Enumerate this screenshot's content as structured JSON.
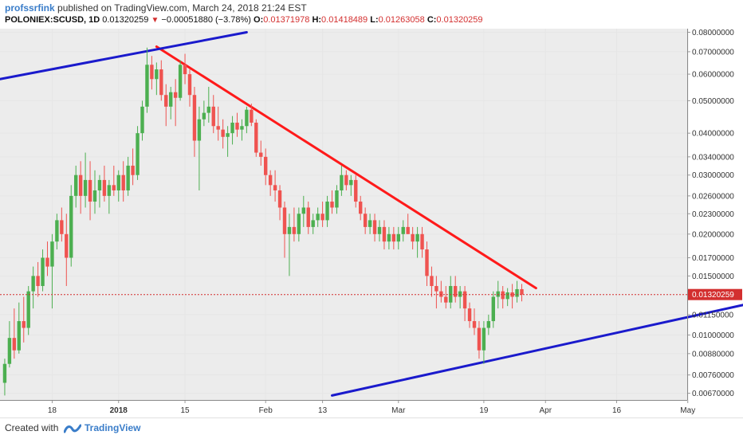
{
  "header": {
    "author": "profssrfink",
    "published": " published on TradingView.com, March 24, 2018 21:24 EST",
    "symbol": "POLONIEX:SCUSD, 1D",
    "last": "0.01320259",
    "change": "−0.00051880 (−3.78%)",
    "o_label": "O:",
    "o_value": "0.01371978",
    "h_label": "H:",
    "h_value": "0.01418489",
    "l_label": "L:",
    "l_value": "0.01263058",
    "c_label": "C:",
    "c_value": "0.01320259"
  },
  "footer": {
    "created": "Created with",
    "brand": "TradingView"
  },
  "colors": {
    "up": "#4caf50",
    "down": "#ef5350",
    "resistance": "#ff1a1a",
    "support": "#1a1acc",
    "grid": "#e6e6e6",
    "plot_bg": "#ececec",
    "price_tag": "#d32f2f",
    "axis_text": "#333333"
  },
  "chart_data": {
    "type": "candlestick",
    "scale": "log",
    "ylim": [
      0.0064,
      0.082
    ],
    "y_ticks": [
      "0.08000000",
      "0.07000000",
      "0.06000000",
      "0.05000000",
      "0.04000000",
      "0.03400000",
      "0.03000000",
      "0.02600000",
      "0.02300000",
      "0.02000000",
      "0.01700000",
      "0.01500000",
      "0.01150000",
      "0.01000000",
      "0.00880000",
      "0.00760000",
      "0.00670000"
    ],
    "x_ticks": [
      {
        "label": "18",
        "date": "2017-12-18",
        "bold": false
      },
      {
        "label": "2018",
        "date": "2018-01-01",
        "bold": true
      },
      {
        "label": "15",
        "date": "2018-01-15",
        "bold": false
      },
      {
        "label": "Feb",
        "date": "2018-02-01",
        "bold": false
      },
      {
        "label": "13",
        "date": "2018-02-13",
        "bold": false
      },
      {
        "label": "Mar",
        "date": "2018-03-01",
        "bold": false
      },
      {
        "label": "19",
        "date": "2018-03-19",
        "bold": false
      },
      {
        "label": "Apr",
        "date": "2018-04-01",
        "bold": false
      },
      {
        "label": "16",
        "date": "2018-04-16",
        "bold": false
      },
      {
        "label": "May",
        "date": "2018-05-01",
        "bold": false
      }
    ],
    "current_price": "0.01320259",
    "candles": [
      {
        "date": "2017-12-08",
        "o": 0.0072,
        "h": 0.0085,
        "l": 0.0066,
        "c": 0.0082
      },
      {
        "date": "2017-12-09",
        "o": 0.0082,
        "h": 0.011,
        "l": 0.008,
        "c": 0.0098
      },
      {
        "date": "2017-12-10",
        "o": 0.0098,
        "h": 0.012,
        "l": 0.0085,
        "c": 0.009
      },
      {
        "date": "2017-12-11",
        "o": 0.009,
        "h": 0.0125,
        "l": 0.0088,
        "c": 0.011
      },
      {
        "date": "2017-12-12",
        "o": 0.011,
        "h": 0.013,
        "l": 0.0095,
        "c": 0.0105
      },
      {
        "date": "2017-12-13",
        "o": 0.0105,
        "h": 0.014,
        "l": 0.01,
        "c": 0.0135
      },
      {
        "date": "2017-12-14",
        "o": 0.0135,
        "h": 0.016,
        "l": 0.012,
        "c": 0.015
      },
      {
        "date": "2017-12-15",
        "o": 0.015,
        "h": 0.0165,
        "l": 0.013,
        "c": 0.014
      },
      {
        "date": "2017-12-16",
        "o": 0.014,
        "h": 0.018,
        "l": 0.0135,
        "c": 0.017
      },
      {
        "date": "2017-12-17",
        "o": 0.017,
        "h": 0.019,
        "l": 0.015,
        "c": 0.016
      },
      {
        "date": "2017-12-18",
        "o": 0.016,
        "h": 0.02,
        "l": 0.012,
        "c": 0.019
      },
      {
        "date": "2017-12-19",
        "o": 0.019,
        "h": 0.023,
        "l": 0.018,
        "c": 0.022
      },
      {
        "date": "2017-12-20",
        "o": 0.022,
        "h": 0.024,
        "l": 0.019,
        "c": 0.02
      },
      {
        "date": "2017-12-21",
        "o": 0.02,
        "h": 0.023,
        "l": 0.014,
        "c": 0.017
      },
      {
        "date": "2017-12-22",
        "o": 0.017,
        "h": 0.028,
        "l": 0.016,
        "c": 0.026
      },
      {
        "date": "2017-12-23",
        "o": 0.026,
        "h": 0.032,
        "l": 0.024,
        "c": 0.03
      },
      {
        "date": "2017-12-24",
        "o": 0.03,
        "h": 0.033,
        "l": 0.023,
        "c": 0.026
      },
      {
        "date": "2017-12-25",
        "o": 0.026,
        "h": 0.035,
        "l": 0.024,
        "c": 0.029
      },
      {
        "date": "2017-12-26",
        "o": 0.029,
        "h": 0.033,
        "l": 0.022,
        "c": 0.025
      },
      {
        "date": "2017-12-27",
        "o": 0.025,
        "h": 0.031,
        "l": 0.023,
        "c": 0.027
      },
      {
        "date": "2017-12-28",
        "o": 0.027,
        "h": 0.03,
        "l": 0.024,
        "c": 0.029
      },
      {
        "date": "2017-12-29",
        "o": 0.029,
        "h": 0.032,
        "l": 0.025,
        "c": 0.026
      },
      {
        "date": "2017-12-30",
        "o": 0.026,
        "h": 0.029,
        "l": 0.023,
        "c": 0.028
      },
      {
        "date": "2017-12-31",
        "o": 0.028,
        "h": 0.032,
        "l": 0.026,
        "c": 0.027
      },
      {
        "date": "2018-01-01",
        "o": 0.027,
        "h": 0.031,
        "l": 0.025,
        "c": 0.03
      },
      {
        "date": "2018-01-02",
        "o": 0.03,
        "h": 0.033,
        "l": 0.025,
        "c": 0.027
      },
      {
        "date": "2018-01-03",
        "o": 0.027,
        "h": 0.034,
        "l": 0.026,
        "c": 0.032
      },
      {
        "date": "2018-01-04",
        "o": 0.032,
        "h": 0.036,
        "l": 0.028,
        "c": 0.03
      },
      {
        "date": "2018-01-05",
        "o": 0.03,
        "h": 0.042,
        "l": 0.029,
        "c": 0.04
      },
      {
        "date": "2018-01-06",
        "o": 0.04,
        "h": 0.05,
        "l": 0.038,
        "c": 0.048
      },
      {
        "date": "2018-01-07",
        "o": 0.048,
        "h": 0.072,
        "l": 0.046,
        "c": 0.064
      },
      {
        "date": "2018-01-08",
        "o": 0.064,
        "h": 0.068,
        "l": 0.054,
        "c": 0.058
      },
      {
        "date": "2018-01-09",
        "o": 0.058,
        "h": 0.065,
        "l": 0.052,
        "c": 0.062
      },
      {
        "date": "2018-01-10",
        "o": 0.062,
        "h": 0.066,
        "l": 0.05,
        "c": 0.052
      },
      {
        "date": "2018-01-11",
        "o": 0.052,
        "h": 0.056,
        "l": 0.042,
        "c": 0.048
      },
      {
        "date": "2018-01-12",
        "o": 0.048,
        "h": 0.055,
        "l": 0.044,
        "c": 0.053
      },
      {
        "date": "2018-01-13",
        "o": 0.053,
        "h": 0.058,
        "l": 0.042,
        "c": 0.051
      },
      {
        "date": "2018-01-14",
        "o": 0.051,
        "h": 0.066,
        "l": 0.05,
        "c": 0.064
      },
      {
        "date": "2018-01-15",
        "o": 0.064,
        "h": 0.069,
        "l": 0.056,
        "c": 0.06
      },
      {
        "date": "2018-01-16",
        "o": 0.06,
        "h": 0.062,
        "l": 0.048,
        "c": 0.052
      },
      {
        "date": "2018-01-17",
        "o": 0.052,
        "h": 0.055,
        "l": 0.034,
        "c": 0.038
      },
      {
        "date": "2018-01-18",
        "o": 0.038,
        "h": 0.048,
        "l": 0.027,
        "c": 0.044
      },
      {
        "date": "2018-01-19",
        "o": 0.044,
        "h": 0.05,
        "l": 0.042,
        "c": 0.046
      },
      {
        "date": "2018-01-20",
        "o": 0.046,
        "h": 0.055,
        "l": 0.043,
        "c": 0.048
      },
      {
        "date": "2018-01-21",
        "o": 0.048,
        "h": 0.052,
        "l": 0.04,
        "c": 0.042
      },
      {
        "date": "2018-01-22",
        "o": 0.042,
        "h": 0.048,
        "l": 0.038,
        "c": 0.041
      },
      {
        "date": "2018-01-23",
        "o": 0.041,
        "h": 0.044,
        "l": 0.036,
        "c": 0.039
      },
      {
        "date": "2018-01-24",
        "o": 0.039,
        "h": 0.042,
        "l": 0.034,
        "c": 0.04
      },
      {
        "date": "2018-01-25",
        "o": 0.04,
        "h": 0.045,
        "l": 0.037,
        "c": 0.043
      },
      {
        "date": "2018-01-26",
        "o": 0.043,
        "h": 0.046,
        "l": 0.039,
        "c": 0.041
      },
      {
        "date": "2018-01-27",
        "o": 0.041,
        "h": 0.044,
        "l": 0.038,
        "c": 0.042
      },
      {
        "date": "2018-01-28",
        "o": 0.042,
        "h": 0.048,
        "l": 0.04,
        "c": 0.047
      },
      {
        "date": "2018-01-29",
        "o": 0.047,
        "h": 0.049,
        "l": 0.042,
        "c": 0.043
      },
      {
        "date": "2018-01-30",
        "o": 0.043,
        "h": 0.044,
        "l": 0.034,
        "c": 0.035
      },
      {
        "date": "2018-01-31",
        "o": 0.035,
        "h": 0.038,
        "l": 0.032,
        "c": 0.034
      },
      {
        "date": "2018-02-01",
        "o": 0.034,
        "h": 0.036,
        "l": 0.028,
        "c": 0.03
      },
      {
        "date": "2018-02-02",
        "o": 0.03,
        "h": 0.031,
        "l": 0.026,
        "c": 0.028
      },
      {
        "date": "2018-02-03",
        "o": 0.028,
        "h": 0.031,
        "l": 0.025,
        "c": 0.027
      },
      {
        "date": "2018-02-04",
        "o": 0.027,
        "h": 0.028,
        "l": 0.022,
        "c": 0.024
      },
      {
        "date": "2018-02-05",
        "o": 0.024,
        "h": 0.025,
        "l": 0.017,
        "c": 0.02
      },
      {
        "date": "2018-02-06",
        "o": 0.02,
        "h": 0.023,
        "l": 0.015,
        "c": 0.021
      },
      {
        "date": "2018-02-07",
        "o": 0.021,
        "h": 0.024,
        "l": 0.019,
        "c": 0.02
      },
      {
        "date": "2018-02-08",
        "o": 0.02,
        "h": 0.024,
        "l": 0.019,
        "c": 0.023
      },
      {
        "date": "2018-02-09",
        "o": 0.023,
        "h": 0.026,
        "l": 0.021,
        "c": 0.024
      },
      {
        "date": "2018-02-10",
        "o": 0.024,
        "h": 0.025,
        "l": 0.02,
        "c": 0.021
      },
      {
        "date": "2018-02-11",
        "o": 0.021,
        "h": 0.023,
        "l": 0.02,
        "c": 0.022
      },
      {
        "date": "2018-02-12",
        "o": 0.022,
        "h": 0.024,
        "l": 0.021,
        "c": 0.023
      },
      {
        "date": "2018-02-13",
        "o": 0.023,
        "h": 0.025,
        "l": 0.021,
        "c": 0.022
      },
      {
        "date": "2018-02-14",
        "o": 0.022,
        "h": 0.026,
        "l": 0.021,
        "c": 0.025
      },
      {
        "date": "2018-02-15",
        "o": 0.025,
        "h": 0.027,
        "l": 0.023,
        "c": 0.024
      },
      {
        "date": "2018-02-16",
        "o": 0.024,
        "h": 0.028,
        "l": 0.023,
        "c": 0.027
      },
      {
        "date": "2018-02-17",
        "o": 0.027,
        "h": 0.032,
        "l": 0.026,
        "c": 0.03
      },
      {
        "date": "2018-02-18",
        "o": 0.03,
        "h": 0.031,
        "l": 0.027,
        "c": 0.028
      },
      {
        "date": "2018-02-19",
        "o": 0.028,
        "h": 0.03,
        "l": 0.026,
        "c": 0.029
      },
      {
        "date": "2018-02-20",
        "o": 0.029,
        "h": 0.03,
        "l": 0.024,
        "c": 0.025
      },
      {
        "date": "2018-02-21",
        "o": 0.025,
        "h": 0.026,
        "l": 0.022,
        "c": 0.023
      },
      {
        "date": "2018-02-22",
        "o": 0.023,
        "h": 0.024,
        "l": 0.02,
        "c": 0.021
      },
      {
        "date": "2018-02-23",
        "o": 0.021,
        "h": 0.023,
        "l": 0.02,
        "c": 0.022
      },
      {
        "date": "2018-02-24",
        "o": 0.022,
        "h": 0.023,
        "l": 0.019,
        "c": 0.02
      },
      {
        "date": "2018-02-25",
        "o": 0.02,
        "h": 0.022,
        "l": 0.019,
        "c": 0.021
      },
      {
        "date": "2018-02-26",
        "o": 0.021,
        "h": 0.022,
        "l": 0.018,
        "c": 0.019
      },
      {
        "date": "2018-02-27",
        "o": 0.019,
        "h": 0.021,
        "l": 0.018,
        "c": 0.02
      },
      {
        "date": "2018-02-28",
        "o": 0.02,
        "h": 0.021,
        "l": 0.018,
        "c": 0.019
      },
      {
        "date": "2018-03-01",
        "o": 0.019,
        "h": 0.021,
        "l": 0.018,
        "c": 0.02
      },
      {
        "date": "2018-03-02",
        "o": 0.02,
        "h": 0.022,
        "l": 0.019,
        "c": 0.021
      },
      {
        "date": "2018-03-03",
        "o": 0.021,
        "h": 0.023,
        "l": 0.02,
        "c": 0.02
      },
      {
        "date": "2018-03-04",
        "o": 0.02,
        "h": 0.021,
        "l": 0.018,
        "c": 0.019
      },
      {
        "date": "2018-03-05",
        "o": 0.019,
        "h": 0.021,
        "l": 0.017,
        "c": 0.02
      },
      {
        "date": "2018-03-06",
        "o": 0.02,
        "h": 0.021,
        "l": 0.017,
        "c": 0.018
      },
      {
        "date": "2018-03-07",
        "o": 0.018,
        "h": 0.019,
        "l": 0.014,
        "c": 0.015
      },
      {
        "date": "2018-03-08",
        "o": 0.015,
        "h": 0.016,
        "l": 0.013,
        "c": 0.014
      },
      {
        "date": "2018-03-09",
        "o": 0.014,
        "h": 0.015,
        "l": 0.012,
        "c": 0.0135
      },
      {
        "date": "2018-03-10",
        "o": 0.0135,
        "h": 0.0145,
        "l": 0.0125,
        "c": 0.013
      },
      {
        "date": "2018-03-11",
        "o": 0.013,
        "h": 0.014,
        "l": 0.012,
        "c": 0.0125
      },
      {
        "date": "2018-03-12",
        "o": 0.0125,
        "h": 0.015,
        "l": 0.012,
        "c": 0.014
      },
      {
        "date": "2018-03-13",
        "o": 0.014,
        "h": 0.015,
        "l": 0.0125,
        "c": 0.013
      },
      {
        "date": "2018-03-14",
        "o": 0.013,
        "h": 0.014,
        "l": 0.012,
        "c": 0.0135
      },
      {
        "date": "2018-03-15",
        "o": 0.0135,
        "h": 0.014,
        "l": 0.011,
        "c": 0.012
      },
      {
        "date": "2018-03-16",
        "o": 0.012,
        "h": 0.0125,
        "l": 0.0105,
        "c": 0.011
      },
      {
        "date": "2018-03-17",
        "o": 0.011,
        "h": 0.012,
        "l": 0.01,
        "c": 0.0105
      },
      {
        "date": "2018-03-18",
        "o": 0.0105,
        "h": 0.011,
        "l": 0.0085,
        "c": 0.009
      },
      {
        "date": "2018-03-19",
        "o": 0.009,
        "h": 0.011,
        "l": 0.0082,
        "c": 0.0105
      },
      {
        "date": "2018-03-20",
        "o": 0.0105,
        "h": 0.0115,
        "l": 0.01,
        "c": 0.011
      },
      {
        "date": "2018-03-21",
        "o": 0.011,
        "h": 0.0135,
        "l": 0.0105,
        "c": 0.013
      },
      {
        "date": "2018-03-22",
        "o": 0.013,
        "h": 0.0145,
        "l": 0.012,
        "c": 0.0135
      },
      {
        "date": "2018-03-23",
        "o": 0.0135,
        "h": 0.014,
        "l": 0.012,
        "c": 0.0128
      },
      {
        "date": "2018-03-24",
        "o": 0.0128,
        "h": 0.0138,
        "l": 0.0122,
        "c": 0.0134
      },
      {
        "date": "2018-03-25",
        "o": 0.0134,
        "h": 0.0142,
        "l": 0.012,
        "c": 0.013
      },
      {
        "date": "2018-03-26",
        "o": 0.013,
        "h": 0.0145,
        "l": 0.0125,
        "c": 0.0137
      },
      {
        "date": "2018-03-27",
        "o": 0.0137,
        "h": 0.0142,
        "l": 0.0126,
        "c": 0.0132
      }
    ],
    "trendlines": [
      {
        "name": "resistance",
        "color": "#ff1a1a",
        "from": {
          "date": "2018-01-09",
          "price": 0.0725
        },
        "to": {
          "date": "2018-03-30",
          "price": 0.0138
        }
      },
      {
        "name": "upper-channel",
        "color": "#1a1acc",
        "from": {
          "date": "2017-12-07",
          "price": 0.058
        },
        "to": {
          "date": "2018-01-28",
          "price": 0.08
        }
      },
      {
        "name": "support",
        "color": "#1a1acc",
        "from": {
          "date": "2018-02-15",
          "price": 0.0066
        },
        "to": {
          "date": "2018-05-15",
          "price": 0.0125
        }
      }
    ]
  }
}
